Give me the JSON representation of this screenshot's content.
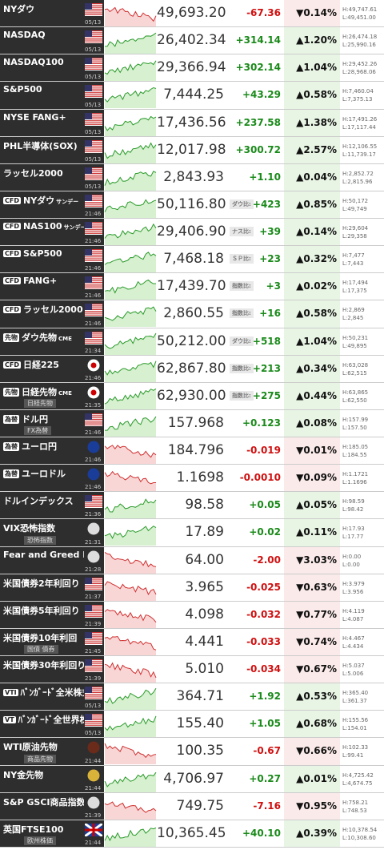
{
  "rows": [
    {
      "name": "NYダウ",
      "time": "05/13",
      "price": "49,693.20",
      "change": "-67.36",
      "pct": "▼0.14%",
      "high": "H:49,747.61",
      "low": "L:49,451.00"
    },
    {
      "name": "NASDAQ",
      "time": "05/13",
      "price": "26,402.34",
      "change": "+314.14",
      "pct": "▲1.20%",
      "high": "H:26,474.18",
      "low": "L:25,990.16"
    },
    {
      "name": "NASDAQ100",
      "time": "05/13",
      "price": "29,366.94",
      "change": "+302.14",
      "pct": "▲1.04%",
      "high": "H:29,452.26",
      "low": "L:28,968.06"
    },
    {
      "name": "S&P500",
      "time": "05/13",
      "price": "7,444.25",
      "change": "+43.29",
      "pct": "▲0.58%",
      "high": "H:7,460.04",
      "low": "L:7,375.13"
    },
    {
      "name": "NYSE FANG+",
      "time": "05/13",
      "price": "17,436.56",
      "change": "+237.58",
      "pct": "▲1.38%",
      "high": "H:17,491.26",
      "low": "L:17,117.44"
    },
    {
      "name": "PHL半導体(SOX)",
      "time": "05/13",
      "price": "12,017.98",
      "change": "+300.72",
      "pct": "▲2.57%",
      "high": "H:12,106.55",
      "low": "L:11,739.17"
    },
    {
      "name": "ラッセル2000",
      "time": "05/13",
      "price": "2,843.93",
      "change": "+1.10",
      "pct": "▲0.04%",
      "high": "H:2,852.72",
      "low": "L:2,815.96"
    },
    {
      "tag": "CFD",
      "name": "NYダウ",
      "suffix": "サンデー",
      "time": "21:46",
      "price": "50,116.80",
      "compare": "ダウ比:",
      "change": "+423",
      "pct": "▲0.85%",
      "high": "H:50,172",
      "low": "L:49,749"
    },
    {
      "tag": "CFD",
      "name": "NAS100",
      "suffix": "サンデー",
      "time": "21:46",
      "price": "29,406.90",
      "compare": "ナス比:",
      "change": "+39",
      "pct": "▲0.14%",
      "high": "H:29,604",
      "low": "L:29,358"
    },
    {
      "tag": "CFD",
      "name": "S&P500",
      "time": "21:46",
      "price": "7,468.18",
      "compare": "ＳＰ比:",
      "change": "+23",
      "pct": "▲0.32%",
      "high": "H:7,477",
      "low": "L:7,443"
    },
    {
      "tag": "CFD",
      "name": "FANG+",
      "time": "21:46",
      "price": "17,439.70",
      "compare": "指数比:",
      "change": "+3",
      "pct": "▲0.02%",
      "high": "H:17,494",
      "low": "L:17,375"
    },
    {
      "tag": "CFD",
      "name": "ラッセル2000",
      "time": "21:46",
      "price": "2,860.55",
      "compare": "指数比:",
      "change": "+16",
      "pct": "▲0.58%",
      "high": "H:2,869",
      "low": "L:2,845"
    },
    {
      "tag": "先物",
      "name": "ダウ先物",
      "suffix": "CME",
      "time": "21:34",
      "price": "50,212.00",
      "compare": "ダウ比:",
      "change": "+518",
      "pct": "▲1.04%",
      "high": "H:50,231",
      "low": "L:49,895"
    },
    {
      "tag": "CFD",
      "name": "日経225",
      "time": "21:46",
      "price": "62,867.80",
      "compare": "指数比:",
      "change": "+213",
      "pct": "▲0.34%",
      "high": "H:63,028",
      "low": "L:62,515"
    },
    {
      "tag": "先物",
      "name": "日経先物",
      "suffix": "CME",
      "sub": "日経先物",
      "time": "21:35",
      "price": "62,930.00",
      "compare": "指数比:",
      "change": "+275",
      "pct": "▲0.44%",
      "high": "H:63,865",
      "low": "L:62,550"
    },
    {
      "tag": "為替",
      "name": "ドル円",
      "sub": "FX為替",
      "time": "21:46",
      "price": "157.968",
      "change": "+0.123",
      "pct": "▲0.08%",
      "high": "H:157.99",
      "low": "L:157.50"
    },
    {
      "tag": "為替",
      "name": "ユーロ円",
      "time": "21:46",
      "price": "184.796",
      "change": "-0.019",
      "pct": "▼0.01%",
      "high": "H:185.05",
      "low": "L:184.55"
    },
    {
      "tag": "為替",
      "name": "ユーロドル",
      "time": "21:46",
      "price": "1.1698",
      "change": "-0.0010",
      "pct": "▼0.09%",
      "high": "H:1.1721",
      "low": "L:1.1696"
    },
    {
      "name": "ドルインデックス",
      "time": "21:36",
      "price": "98.58",
      "change": "+0.05",
      "pct": "▲0.05%",
      "high": "H:98.59",
      "low": "L:98.42"
    },
    {
      "name": "VIX恐怖指数",
      "sub": "恐怖指数",
      "time": "21:31",
      "price": "17.89",
      "change": "+0.02",
      "pct": "▲0.11%",
      "high": "H:17.93",
      "low": "L:17.77"
    },
    {
      "name": "Fear and Greed Index",
      "time": "21:28",
      "price": "64.00",
      "change": "-2.00",
      "pct": "▼3.03%",
      "high": "H:0.00",
      "low": "L:0.00"
    },
    {
      "name": "米国債券2年利回り",
      "time": "21:37",
      "price": "3.965",
      "change": "-0.025",
      "pct": "▼0.63%",
      "high": "H:3.979",
      "low": "L:3.956"
    },
    {
      "name": "米国債券5年利回り",
      "time": "21:39",
      "price": "4.098",
      "change": "-0.032",
      "pct": "▼0.77%",
      "high": "H:4.119",
      "low": "L:4.087"
    },
    {
      "name": "米国債券10年利回",
      "sub": "国債 債券",
      "time": "21:45",
      "price": "4.441",
      "change": "-0.033",
      "pct": "▼0.74%",
      "high": "H:4.467",
      "low": "L:4.434"
    },
    {
      "name": "米国債券30年利回り",
      "time": "21:39",
      "price": "5.010",
      "change": "-0.034",
      "pct": "▼0.67%",
      "high": "H:5.037",
      "low": "L:5.006"
    },
    {
      "tag": "VTI",
      "name": "ﾊﾞﾝｶﾞｰﾄﾞ全米株式 ETF",
      "time": "05/13",
      "price": "364.71",
      "change": "+1.92",
      "pct": "▲0.53%",
      "high": "H:365.40",
      "low": "L:361.37"
    },
    {
      "tag": "VT",
      "name": "ﾊﾞﾝｶﾞｰﾄﾞ全世界株式 ETF",
      "time": "05/13",
      "price": "155.40",
      "change": "+1.05",
      "pct": "▲0.68%",
      "high": "H:155.56",
      "low": "L:154.01"
    },
    {
      "name": "WTI原油先物",
      "sub": "商品先物",
      "time": "21:44",
      "price": "100.35",
      "change": "-0.67",
      "pct": "▼0.66%",
      "high": "H:102.33",
      "low": "L:99.41"
    },
    {
      "name": "NY金先物",
      "time": "21:44",
      "price": "4,706.97",
      "change": "+0.27",
      "pct": "▲0.01%",
      "high": "H:4,725.42",
      "low": "L:4,674.75"
    },
    {
      "name": "S&P GSCI商品指数",
      "time": "21:39",
      "price": "749.75",
      "change": "-7.16",
      "pct": "▼0.95%",
      "high": "H:758.21",
      "low": "L:748.53"
    },
    {
      "name": "英国FTSE100",
      "sub": "欧州株価",
      "time": "21:44",
      "price": "10,365.45",
      "change": "+40.10",
      "pct": "▲0.39%",
      "high": "H:10,378.54",
      "low": "L:10,308.60"
    }
  ]
}
